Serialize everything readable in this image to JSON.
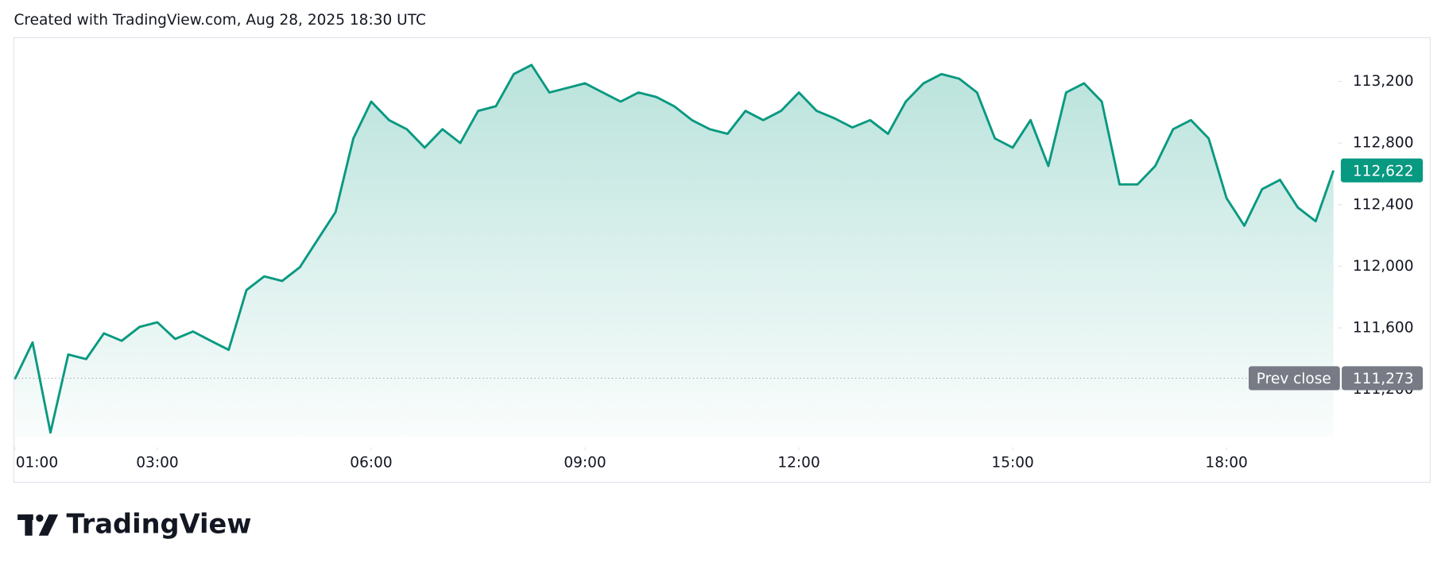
{
  "header": {
    "text": "Created with TradingView.com, Aug 28, 2025 18:30 UTC"
  },
  "footer": {
    "brand": "TradingView"
  },
  "chart_data": {
    "type": "area",
    "x": [
      "01:00",
      "01:15",
      "01:30",
      "01:45",
      "02:00",
      "02:15",
      "02:30",
      "02:45",
      "03:00",
      "03:15",
      "03:30",
      "03:45",
      "04:00",
      "04:15",
      "04:30",
      "04:45",
      "05:00",
      "05:15",
      "05:30",
      "05:45",
      "06:00",
      "06:15",
      "06:30",
      "06:45",
      "07:00",
      "07:15",
      "07:30",
      "07:45",
      "08:00",
      "08:15",
      "08:30",
      "08:45",
      "09:00",
      "09:15",
      "09:30",
      "09:45",
      "10:00",
      "10:15",
      "10:30",
      "10:45",
      "11:00",
      "11:15",
      "11:30",
      "11:45",
      "12:00",
      "12:15",
      "12:30",
      "12:45",
      "13:00",
      "13:15",
      "13:30",
      "13:45",
      "14:00",
      "14:15",
      "14:30",
      "14:45",
      "15:00",
      "15:15",
      "15:30",
      "15:45",
      "16:00",
      "16:15",
      "16:30",
      "16:45",
      "17:00",
      "17:15",
      "17:30",
      "17:45",
      "18:00",
      "18:15",
      "18:30",
      "18:45",
      "19:00",
      "19:15",
      "19:30"
    ],
    "series": [
      {
        "color": "#089981",
        "values": [
          111266,
          111505,
          110920,
          111427,
          111397,
          111564,
          111516,
          111606,
          111636,
          111528,
          111576,
          111516,
          111457,
          111845,
          111934,
          111904,
          111994,
          112173,
          112352,
          112830,
          113069,
          112949,
          112890,
          112770,
          112890,
          112800,
          113009,
          113039,
          113248,
          113307,
          113128,
          113158,
          113188,
          113128,
          113069,
          113128,
          113099,
          113039,
          112949,
          112890,
          112860,
          113009,
          112949,
          113009,
          113128,
          113009,
          112961,
          112901,
          112949,
          112860,
          113069,
          113188,
          113248,
          113218,
          113128,
          112830,
          112770,
          112949,
          112651,
          113128,
          113188,
          113069,
          112531,
          112531,
          112651,
          112890,
          112949,
          112830,
          112442,
          112263,
          112501,
          112561,
          112382,
          112292,
          112622
        ]
      }
    ],
    "xlim": [
      "01:00",
      "19:30"
    ],
    "xticks": [
      "01:00",
      "03:00",
      "06:00",
      "09:00",
      "12:00",
      "15:00",
      "18:00"
    ],
    "ylim": [
      110890,
      113460
    ],
    "yticks": [
      {
        "value": 111200,
        "label": "111,200"
      },
      {
        "value": 111600,
        "label": "111,600"
      },
      {
        "value": 112000,
        "label": "112,000"
      },
      {
        "value": 112400,
        "label": "112,400"
      },
      {
        "value": 112800,
        "label": "112,800"
      },
      {
        "value": 113200,
        "label": "113,200"
      }
    ],
    "current_price": {
      "value": 112622,
      "label": "112,622"
    },
    "prev_close": {
      "name": "Prev close",
      "value": 111273,
      "label": "111,273"
    }
  }
}
